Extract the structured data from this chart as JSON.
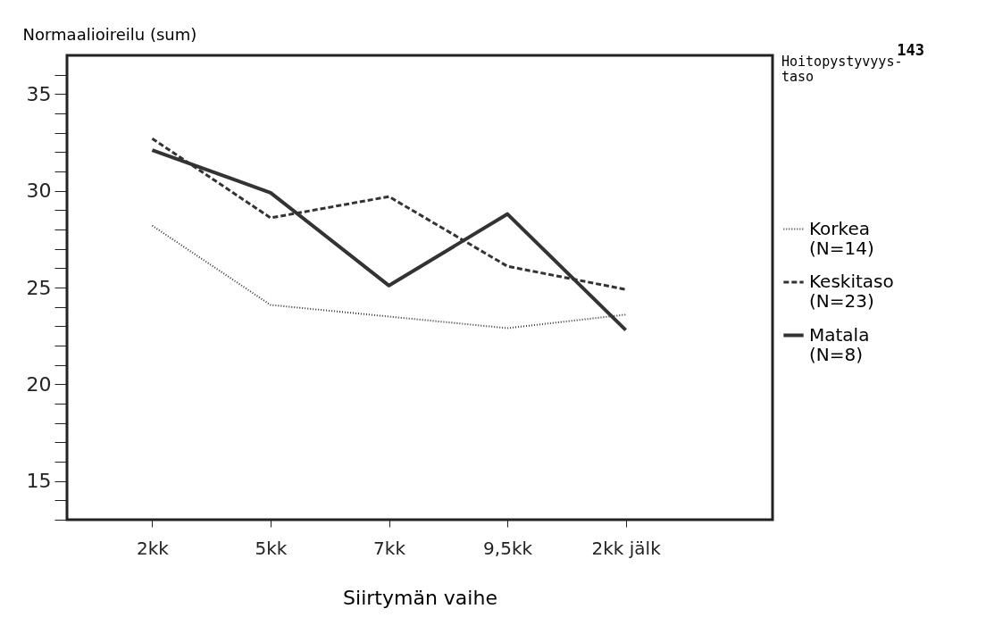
{
  "chart_data": {
    "type": "line",
    "ylabel": "Normaalioireilu (sum)",
    "xlabel": "Siirtymän vaihe",
    "legend_title": "Hoitopystyvyys-taso",
    "annotations": [
      "143"
    ],
    "categories": [
      "2kk",
      "5kk",
      "7kk",
      "9,5kk",
      "2kk jälk"
    ],
    "series": [
      {
        "name": "Korkea (N=14)",
        "color": "#333333",
        "line_style": "dotted",
        "values": [
          28.2,
          24.1,
          23.5,
          22.9,
          23.6
        ]
      },
      {
        "name": "Keskitaso (N=23)",
        "color": "#333333",
        "line_style": "dashed",
        "values": [
          32.7,
          28.6,
          29.7,
          26.1,
          24.9
        ]
      },
      {
        "name": "Matala (N=8)",
        "color": "#333333",
        "line_style": "solid",
        "values": [
          32.1,
          29.9,
          25.1,
          28.8,
          22.8
        ]
      }
    ],
    "ylim": [
      13,
      37
    ],
    "yticks": [
      {
        "value": 13,
        "label": null
      },
      {
        "value": 14,
        "label": null
      },
      15,
      {
        "value": 16,
        "label": null
      },
      {
        "value": 17,
        "label": null
      },
      {
        "value": 18,
        "label": null
      },
      {
        "value": 19,
        "label": null
      },
      20,
      {
        "value": 21,
        "label": null
      },
      {
        "value": 22,
        "label": null
      },
      {
        "value": 23,
        "label": null
      },
      {
        "value": 24,
        "label": null
      },
      25,
      {
        "value": 26,
        "label": null
      },
      {
        "value": 27,
        "label": null
      },
      {
        "value": 28,
        "label": null
      },
      {
        "value": 29,
        "label": null
      },
      30,
      {
        "value": 31,
        "label": null
      },
      {
        "value": 32,
        "label": null
      },
      {
        "value": 33,
        "label": null
      },
      {
        "value": 34,
        "label": null
      },
      35,
      {
        "value": 36,
        "label": null
      }
    ],
    "grid": false,
    "legend": "right",
    "marker": "none"
  }
}
